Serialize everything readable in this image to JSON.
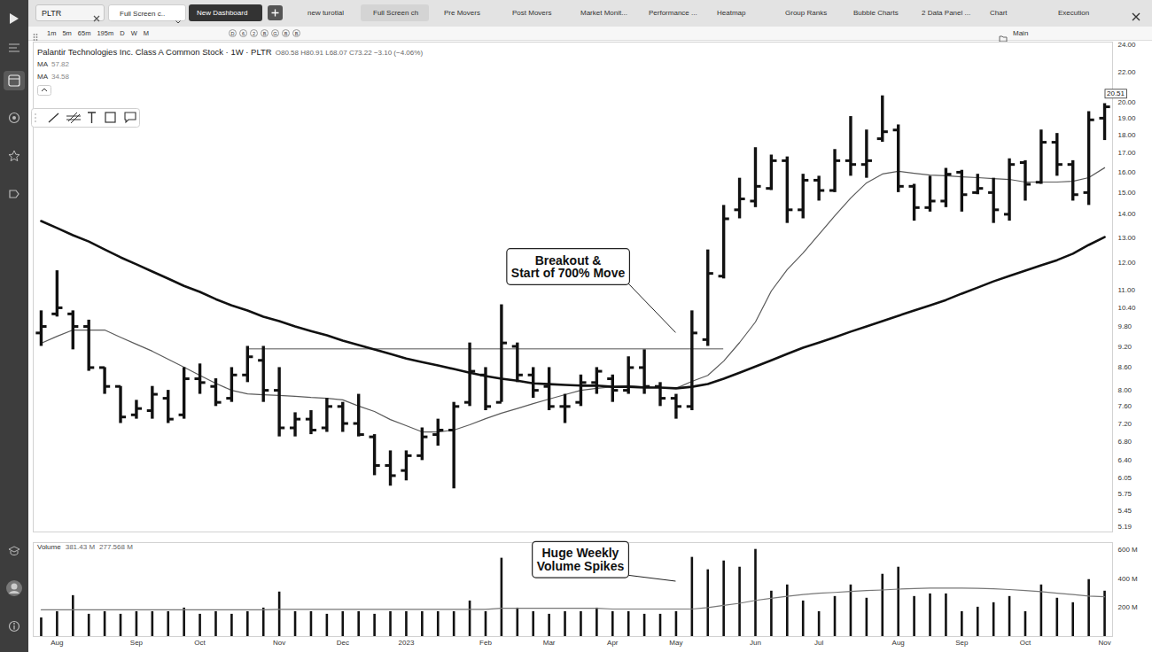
{
  "app": {
    "search": "PLTR",
    "tabs": [
      "Full Screen c..",
      "New Dashboard",
      "new turotial",
      "Full Screen ch",
      "Pre Movers",
      "Post Movers",
      "Market Monit...",
      "Performance ...",
      "Heatmap",
      "Group Ranks",
      "Bubble Charts",
      "2 Data Panel ...",
      "Chart",
      "Execution"
    ],
    "intervals": [
      "1m",
      "5m",
      "65m",
      "195m",
      "D",
      "W",
      "M"
    ],
    "study_buttons": [
      "D",
      "6",
      "2",
      "B",
      "G",
      "B",
      "B"
    ],
    "layout": "Main"
  },
  "chart_data": [
    {
      "type": "ohlc",
      "title": "Palantir Technologies Inc. Class A Common Stock · 1W · PLTR",
      "subtitle": "O80.58 H80.91 L68.07 C73.22 −3.10 (−4.06%)",
      "log": "y",
      "grid": false,
      "tick_labels": "y",
      "color": "#111111",
      "categories": [
        null,
        "Aug",
        null,
        null,
        null,
        null,
        "Sep",
        null,
        null,
        null,
        "Oct",
        null,
        null,
        null,
        null,
        "Nov",
        null,
        null,
        null,
        "Dec",
        null,
        null,
        null,
        "2023",
        null,
        null,
        null,
        null,
        "Feb",
        null,
        null,
        null,
        "Mar",
        null,
        null,
        null,
        "Apr",
        null,
        null,
        null,
        "May",
        null,
        null,
        null,
        null,
        "Jun",
        null,
        null,
        null,
        "Jul",
        null,
        null,
        null,
        null,
        "Aug",
        null,
        null,
        null,
        "Sep",
        null,
        null,
        null,
        "Oct",
        null,
        null,
        null,
        null,
        "Nov"
      ],
      "open": [
        9.6,
        10.2,
        10.2,
        9.8,
        8.6,
        8.1,
        7.4,
        7.5,
        7.8,
        7.4,
        8.3,
        8.1,
        7.8,
        8.4,
        8.8,
        8.0,
        7.1,
        7.3,
        7.1,
        7.6,
        7.2,
        6.9,
        6.3,
        6.2,
        6.5,
        6.95,
        7.05,
        7.7,
        8.4,
        7.7,
        9.2,
        8.4,
        8.1,
        7.6,
        7.7,
        8.2,
        8.3,
        8.0,
        8.6,
        8.1,
        7.8,
        7.6,
        9.4,
        11.5,
        14.2,
        14.6,
        15.2,
        16.6,
        14.2,
        15.6,
        15.1,
        16.6,
        16.4,
        17.8,
        18.3,
        15.3,
        14.3,
        14.6,
        16.0,
        15.0,
        15.0,
        14.0,
        16.5,
        15.5,
        17.6,
        16.4,
        15.0,
        19.0
      ],
      "high": [
        10.3,
        11.7,
        10.3,
        10.0,
        8.6,
        8.1,
        7.75,
        8.1,
        8.0,
        8.6,
        8.7,
        8.3,
        8.6,
        9.2,
        9.2,
        8.6,
        7.45,
        7.5,
        7.8,
        7.7,
        7.9,
        6.95,
        6.6,
        6.6,
        7.1,
        7.3,
        7.7,
        9.3,
        8.6,
        10.5,
        9.3,
        8.6,
        8.6,
        7.9,
        8.4,
        8.6,
        8.4,
        8.9,
        9.1,
        8.2,
        7.9,
        10.3,
        12.5,
        14.4,
        15.7,
        17.3,
        16.9,
        16.8,
        15.9,
        15.8,
        17.2,
        19.1,
        18.3,
        20.4,
        18.6,
        15.4,
        15.8,
        16.2,
        16.1,
        15.9,
        15.7,
        16.7,
        16.6,
        18.3,
        18.1,
        16.6,
        19.4,
        19.9
      ],
      "low": [
        9.2,
        10.1,
        9.1,
        8.5,
        7.9,
        7.2,
        7.3,
        7.3,
        7.2,
        7.3,
        7.9,
        7.6,
        7.7,
        8.2,
        7.7,
        6.9,
        6.9,
        6.95,
        7.0,
        7.0,
        6.9,
        6.1,
        5.9,
        6.0,
        6.4,
        6.7,
        5.85,
        7.6,
        7.5,
        7.7,
        8.2,
        7.8,
        7.5,
        7.2,
        7.6,
        7.9,
        7.7,
        7.9,
        7.9,
        7.6,
        7.3,
        7.5,
        9.2,
        11.4,
        13.8,
        14.3,
        15.1,
        13.6,
        13.8,
        14.6,
        15.0,
        15.8,
        15.7,
        17.6,
        15.0,
        13.7,
        14.1,
        14.3,
        14.1,
        14.9,
        13.6,
        13.7,
        14.6,
        15.4,
        15.8,
        14.6,
        14.4,
        17.7
      ],
      "close": [
        9.8,
        10.4,
        9.8,
        8.6,
        8.1,
        7.35,
        7.55,
        7.9,
        7.3,
        8.3,
        8.2,
        7.7,
        8.4,
        8.9,
        8.0,
        7.1,
        7.3,
        7.05,
        7.6,
        7.2,
        6.95,
        6.3,
        6.1,
        6.5,
        6.9,
        7.05,
        7.6,
        8.5,
        7.6,
        9.3,
        8.4,
        8.0,
        7.6,
        7.6,
        8.2,
        8.5,
        8.0,
        8.6,
        8.1,
        7.8,
        7.6,
        9.6,
        11.6,
        13.8,
        14.7,
        15.3,
        16.6,
        14.2,
        15.6,
        15.1,
        16.6,
        16.4,
        16.6,
        18.2,
        15.3,
        14.3,
        14.6,
        15.9,
        14.9,
        15.2,
        14.2,
        16.4,
        15.4,
        17.6,
        16.4,
        14.9,
        18.9,
        19.7
      ],
      "series": [
        {
          "name": "MA",
          "readout": "57.82",
          "color": "#5a5a5a",
          "line_style": "thin",
          "type": "line",
          "values": [
            9.29,
            9.5,
            9.69,
            9.69,
            9.69,
            9.47,
            9.26,
            9.06,
            8.83,
            8.61,
            8.39,
            8.18,
            8.0,
            7.91,
            7.89,
            7.87,
            7.85,
            7.82,
            7.8,
            7.76,
            7.61,
            7.48,
            7.29,
            7.15,
            7.01,
            7.01,
            7.05,
            7.17,
            7.31,
            7.44,
            7.55,
            7.67,
            7.78,
            7.89,
            8.0,
            8.05,
            8.09,
            8.12,
            8.09,
            8.07,
            8.05,
            8.23,
            8.39,
            8.78,
            9.31,
            9.94,
            10.97,
            11.74,
            12.38,
            13.13,
            13.93,
            14.74,
            15.47,
            15.91,
            16.05,
            15.95,
            15.86,
            15.82,
            15.77,
            15.73,
            15.68,
            15.64,
            15.51,
            15.51,
            15.51,
            15.55,
            15.73,
            16.23
          ]
        },
        {
          "name": "MA",
          "readout": "34.58",
          "color": "#111111",
          "line_style": "bold",
          "type": "line",
          "values": [
            13.7,
            13.4,
            13.1,
            12.84,
            12.52,
            12.21,
            11.94,
            11.67,
            11.41,
            11.15,
            10.94,
            10.69,
            10.48,
            10.31,
            10.11,
            9.97,
            9.8,
            9.66,
            9.53,
            9.37,
            9.24,
            9.11,
            8.98,
            8.85,
            8.75,
            8.66,
            8.56,
            8.46,
            8.37,
            8.3,
            8.25,
            8.18,
            8.16,
            8.14,
            8.12,
            8.12,
            8.09,
            8.09,
            8.07,
            8.07,
            8.05,
            8.09,
            8.16,
            8.3,
            8.46,
            8.63,
            8.8,
            8.98,
            9.16,
            9.31,
            9.47,
            9.64,
            9.8,
            9.97,
            10.14,
            10.31,
            10.48,
            10.66,
            10.88,
            11.09,
            11.31,
            11.51,
            11.7,
            11.9,
            12.1,
            12.35,
            12.7,
            13.02
          ]
        }
      ],
      "level": {
        "value": 9.13,
        "from": 13,
        "to": 43,
        "color": "#8c8c8c"
      },
      "last_price": 20.51,
      "ylim": [
        5.1,
        24.2
      ],
      "yticks": [
        {
          "value": 24,
          "label": "24.00"
        },
        {
          "value": 22,
          "label": "22.00"
        },
        {
          "value": 20,
          "label": "20.00"
        },
        {
          "value": 19,
          "label": "19.00"
        },
        {
          "value": 18,
          "label": "18.00"
        },
        {
          "value": 17,
          "label": "17.00"
        },
        {
          "value": 16,
          "label": "16.00"
        },
        {
          "value": 15,
          "label": "15.00"
        },
        {
          "value": 14,
          "label": "14.00"
        },
        {
          "value": 13,
          "label": "13.00"
        },
        {
          "value": 12,
          "label": "12.00"
        },
        {
          "value": 11,
          "label": "11.00"
        },
        {
          "value": 10.4,
          "label": "10.40"
        },
        {
          "value": 9.8,
          "label": "9.80"
        },
        {
          "value": 9.2,
          "label": "9.20"
        },
        {
          "value": 8.6,
          "label": "8.60"
        },
        {
          "value": 8,
          "label": "8.00"
        },
        {
          "value": 7.6,
          "label": "7.60"
        },
        {
          "value": 7.2,
          "label": "7.20"
        },
        {
          "value": 6.8,
          "label": "6.80"
        },
        {
          "value": 6.4,
          "label": "6.40"
        },
        6.05,
        5.75,
        5.45,
        5.19
      ],
      "annotations": [
        {
          "text": [
            "Breakout &",
            "Start of 700% Move"
          ],
          "x": 40,
          "y": 9.6
        }
      ]
    },
    {
      "type": "bar",
      "title": "Volume",
      "readouts": [
        "381.43 M",
        "277.568 M"
      ],
      "grid": false,
      "color": "#111111",
      "categories": [
        null,
        "Aug",
        null,
        null,
        null,
        null,
        "Sep",
        null,
        null,
        null,
        "Oct",
        null,
        null,
        null,
        null,
        "Nov",
        null,
        null,
        null,
        "Dec",
        null,
        null,
        null,
        "2023",
        null,
        null,
        null,
        null,
        "Feb",
        null,
        null,
        null,
        "Mar",
        null,
        null,
        null,
        "Apr",
        null,
        null,
        null,
        "May",
        null,
        null,
        null,
        null,
        "Jun",
        null,
        null,
        null,
        "Jul",
        null,
        null,
        null,
        null,
        "Aug",
        null,
        null,
        null,
        "Sep",
        null,
        null,
        null,
        "Oct",
        null,
        null,
        null,
        null,
        "Nov"
      ],
      "values": [
        129,
        172,
        283,
        154,
        172,
        154,
        172,
        172,
        172,
        197,
        154,
        172,
        154,
        172,
        197,
        308,
        172,
        172,
        154,
        172,
        172,
        154,
        172,
        172,
        172,
        172,
        172,
        246,
        172,
        542,
        197,
        172,
        154,
        172,
        172,
        197,
        172,
        172,
        154,
        154,
        172,
        548,
        462,
        523,
        480,
        603,
        314,
        357,
        246,
        172,
        277,
        357,
        265,
        431,
        480,
        277,
        295,
        295,
        172,
        203,
        234,
        277,
        172,
        357,
        265,
        234,
        394,
        314
      ],
      "series": [
        {
          "type": "line",
          "color": "#777777",
          "line_style": "thin",
          "values": [
            185,
            185,
            185,
            185,
            185,
            185,
            185,
            185,
            185,
            185,
            185,
            185,
            185,
            185,
            185,
            188,
            188,
            188,
            188,
            188,
            188,
            188,
            188,
            188,
            188,
            188,
            188,
            188,
            188,
            195,
            195,
            195,
            195,
            195,
            195,
            195,
            190,
            190,
            190,
            190,
            190,
            190,
            200,
            215,
            230,
            250,
            265,
            278,
            290,
            300,
            305,
            312,
            318,
            322,
            328,
            332,
            335,
            335,
            335,
            333,
            330,
            325,
            318,
            310,
            300,
            290,
            280,
            275
          ]
        }
      ],
      "ylim": [
        0,
        650
      ],
      "yticks": [
        {
          "value": 200,
          "label": "200 M"
        },
        {
          "value": 400,
          "label": "400 M"
        },
        {
          "value": 600,
          "label": "600 M"
        }
      ],
      "annotations": [
        {
          "text": [
            "Huge Weekly",
            "Volume Spikes"
          ],
          "x": 40,
          "y": 380
        }
      ]
    }
  ]
}
